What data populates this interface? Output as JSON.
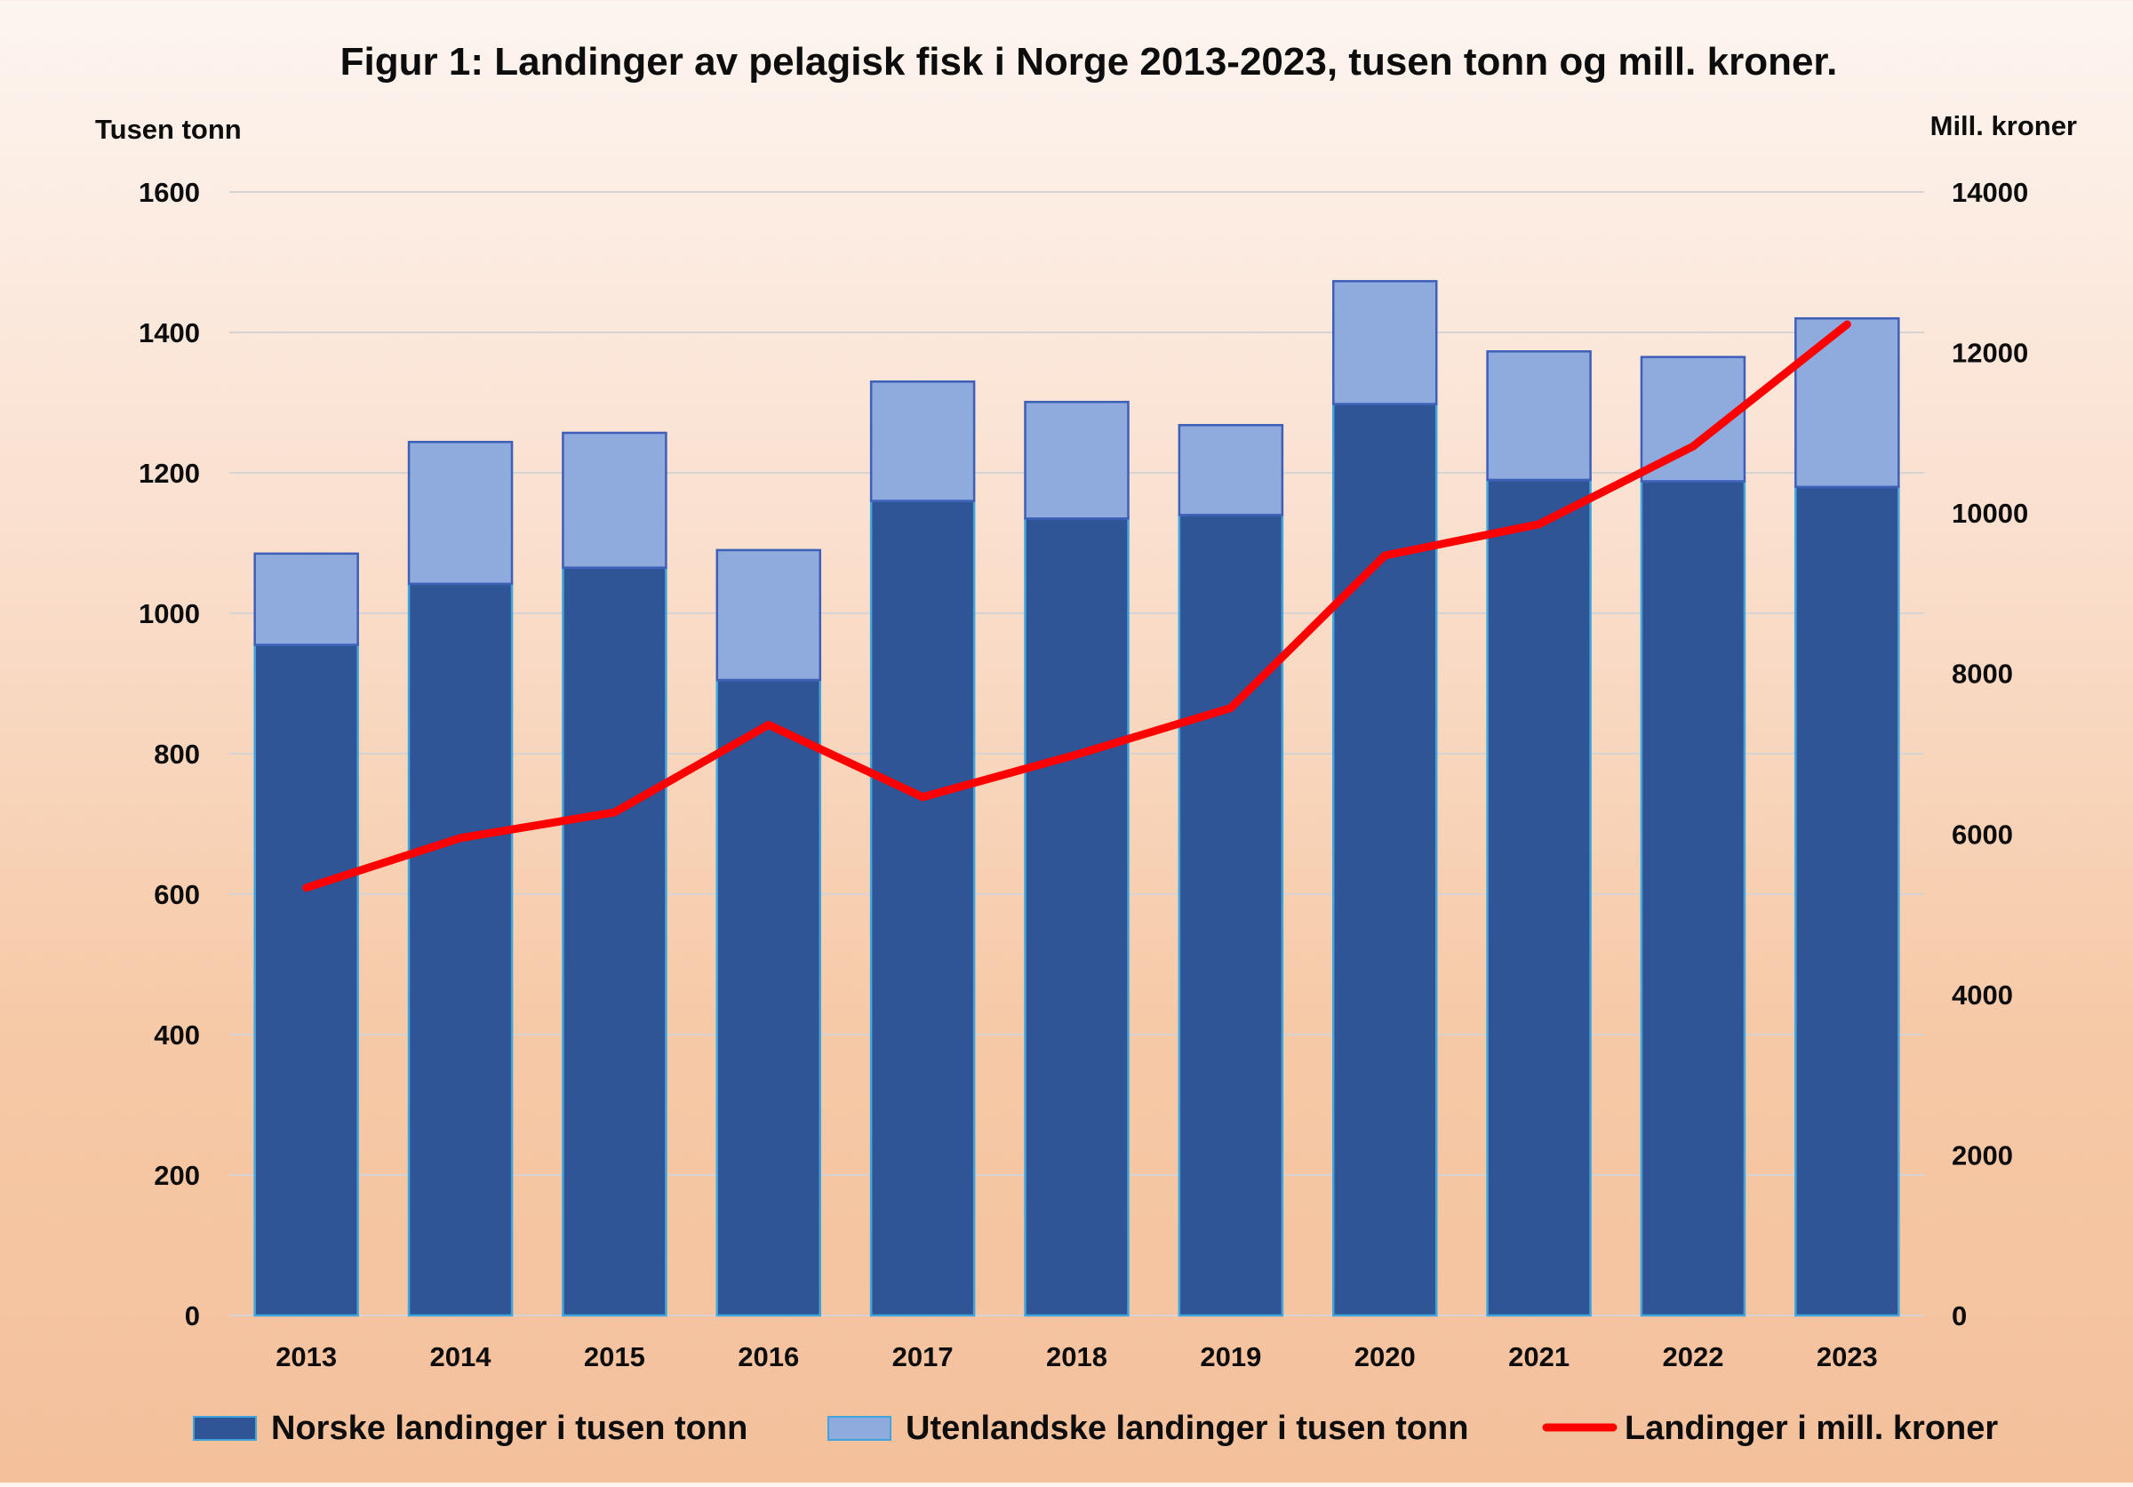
{
  "chart_data": {
    "type": "bar",
    "stacked": true,
    "title": "Figur 1: Landinger av pelagisk fisk i Norge 2013-2023, tusen tonn og mill. kroner.",
    "ylabel": "Tusen tonn",
    "y2label": "Mill. kroner",
    "categories": [
      "2013",
      "2014",
      "2015",
      "2016",
      "2017",
      "2018",
      "2019",
      "2020",
      "2021",
      "2022",
      "2023"
    ],
    "ylim": [
      0,
      1600
    ],
    "yticks": [
      "0",
      "200",
      "400",
      "600",
      "800",
      "1000",
      "1200",
      "1400",
      "1600"
    ],
    "y2lim": [
      0,
      14000
    ],
    "y2ticks": [
      "0",
      "2000",
      "4000",
      "6000",
      "8000",
      "10000",
      "12000",
      "14000"
    ],
    "grid": true,
    "legend_position": "bottom",
    "series": [
      {
        "name": "Norske landinger i tusen tonn",
        "type": "bar",
        "color": "#2f5597",
        "values": [
          955,
          1042,
          1065,
          905,
          1160,
          1135,
          1140,
          1298,
          1190,
          1188,
          1180
        ]
      },
      {
        "name": "Utenlandske landinger i tusen tonn",
        "type": "bar",
        "color": "#8faadc",
        "values": [
          130,
          202,
          192,
          185,
          170,
          166,
          128,
          175,
          183,
          177,
          240
        ]
      },
      {
        "name": "Landinger i mill. kroner",
        "type": "line",
        "axis": "right",
        "color": "#ff0000",
        "values": [
          5330,
          5950,
          6270,
          7360,
          6460,
          6990,
          7570,
          9470,
          9860,
          10830,
          12350
        ]
      }
    ]
  }
}
